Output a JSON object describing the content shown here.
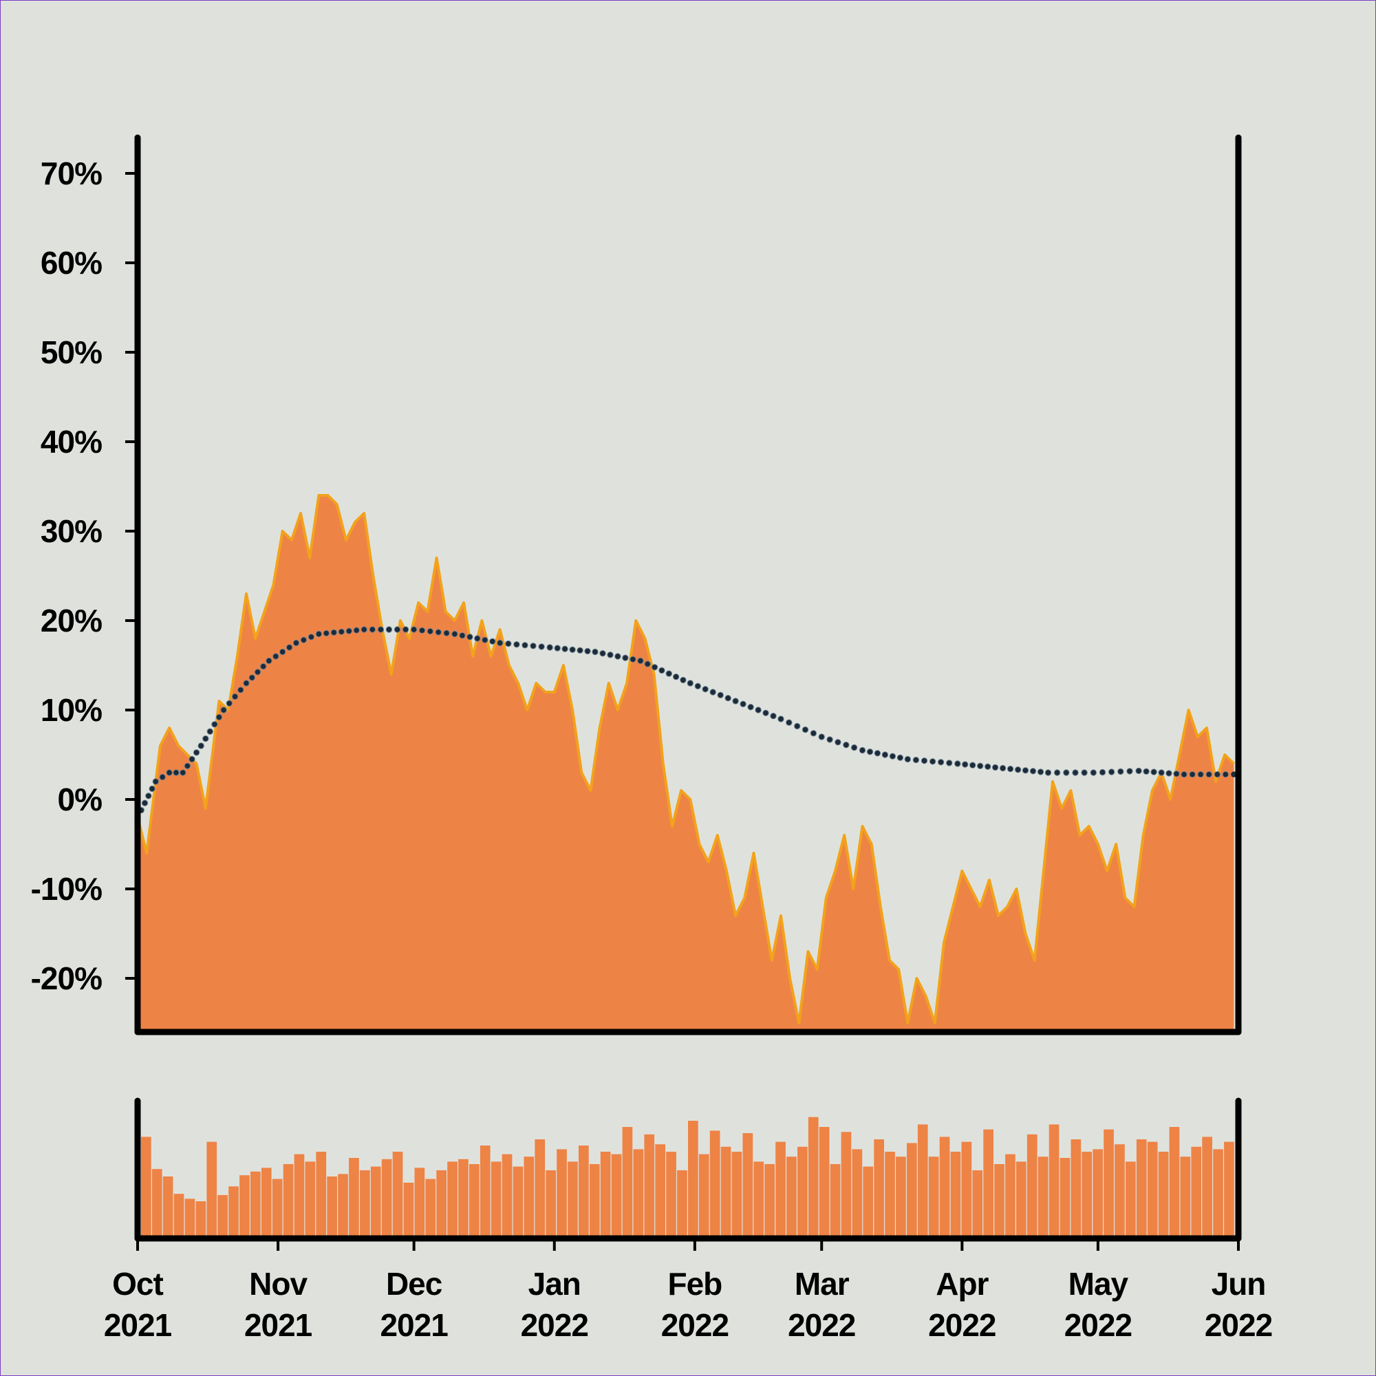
{
  "chart_data": {
    "type": "area",
    "title": "",
    "xlabel": "",
    "ylabel": "",
    "x_range": [
      "2021-10-01",
      "2022-05-31"
    ],
    "ylim": [
      -26,
      74
    ],
    "y_ticks": [
      -20,
      -10,
      0,
      10,
      20,
      30,
      40,
      50,
      60,
      70
    ],
    "y_tick_labels": [
      "-20%",
      "-10%",
      "0%",
      "10%",
      "20%",
      "30%",
      "40%",
      "50%",
      "60%",
      "70%"
    ],
    "x_ticks": [
      {
        "date": "2021-10-01",
        "month": "Oct",
        "year": "2021"
      },
      {
        "date": "2021-11-01",
        "month": "Nov",
        "year": "2021"
      },
      {
        "date": "2021-12-01",
        "month": "Dec",
        "year": "2021"
      },
      {
        "date": "2022-01-01",
        "month": "Jan",
        "year": "2022"
      },
      {
        "date": "2022-02-01",
        "month": "Feb",
        "year": "2022"
      },
      {
        "date": "2022-03-01",
        "month": "Mar",
        "year": "2022"
      },
      {
        "date": "2022-04-01",
        "month": "Apr",
        "year": "2022"
      },
      {
        "date": "2022-05-01",
        "month": "May",
        "year": "2022"
      },
      {
        "date": "2022-06-01",
        "month": "Jun",
        "year": "2022"
      }
    ],
    "grid": false,
    "legend": "none",
    "colors": {
      "area": "#ee8346",
      "area_edge": "#f2a21c",
      "trend": "#1c2b3a",
      "axis": "#000000",
      "background": "#dfe2dc"
    },
    "series": [
      {
        "type": "area",
        "points": [
          [
            "2021-10-01",
            -2
          ],
          [
            "2021-10-03",
            -6
          ],
          [
            "2021-10-06",
            6
          ],
          [
            "2021-10-08",
            8
          ],
          [
            "2021-10-10",
            6
          ],
          [
            "2021-10-12",
            5
          ],
          [
            "2021-10-14",
            4
          ],
          [
            "2021-10-16",
            -1
          ],
          [
            "2021-10-19",
            11
          ],
          [
            "2021-10-21",
            10
          ],
          [
            "2021-10-23",
            16
          ],
          [
            "2021-10-25",
            23
          ],
          [
            "2021-10-27",
            18
          ],
          [
            "2021-10-29",
            21
          ],
          [
            "2021-10-31",
            24
          ],
          [
            "2021-11-02",
            30
          ],
          [
            "2021-11-04",
            29
          ],
          [
            "2021-11-06",
            32
          ],
          [
            "2021-11-08",
            27
          ],
          [
            "2021-11-10",
            34
          ],
          [
            "2021-11-12",
            34
          ],
          [
            "2021-11-14",
            33
          ],
          [
            "2021-11-16",
            29
          ],
          [
            "2021-11-18",
            31
          ],
          [
            "2021-11-20",
            32
          ],
          [
            "2021-11-22",
            25
          ],
          [
            "2021-11-24",
            19
          ],
          [
            "2021-11-26",
            14
          ],
          [
            "2021-11-28",
            20
          ],
          [
            "2021-11-30",
            18
          ],
          [
            "2021-12-02",
            22
          ],
          [
            "2021-12-04",
            21
          ],
          [
            "2021-12-06",
            27
          ],
          [
            "2021-12-08",
            21
          ],
          [
            "2021-12-10",
            20
          ],
          [
            "2021-12-12",
            22
          ],
          [
            "2021-12-14",
            16
          ],
          [
            "2021-12-16",
            20
          ],
          [
            "2021-12-18",
            16
          ],
          [
            "2021-12-20",
            19
          ],
          [
            "2021-12-22",
            15
          ],
          [
            "2021-12-24",
            13
          ],
          [
            "2021-12-26",
            10
          ],
          [
            "2021-12-28",
            13
          ],
          [
            "2021-12-30",
            12
          ],
          [
            "2022-01-01",
            12
          ],
          [
            "2022-01-03",
            15
          ],
          [
            "2022-01-05",
            10
          ],
          [
            "2022-01-07",
            3
          ],
          [
            "2022-01-09",
            1
          ],
          [
            "2022-01-11",
            8
          ],
          [
            "2022-01-13",
            13
          ],
          [
            "2022-01-15",
            10
          ],
          [
            "2022-01-17",
            13
          ],
          [
            "2022-01-19",
            20
          ],
          [
            "2022-01-21",
            18
          ],
          [
            "2022-01-23",
            14
          ],
          [
            "2022-01-25",
            4
          ],
          [
            "2022-01-27",
            -3
          ],
          [
            "2022-01-29",
            1
          ],
          [
            "2022-01-31",
            0
          ],
          [
            "2022-02-02",
            -5
          ],
          [
            "2022-02-04",
            -7
          ],
          [
            "2022-02-06",
            -4
          ],
          [
            "2022-02-08",
            -8
          ],
          [
            "2022-02-10",
            -13
          ],
          [
            "2022-02-12",
            -11
          ],
          [
            "2022-02-14",
            -6
          ],
          [
            "2022-02-16",
            -12
          ],
          [
            "2022-02-18",
            -18
          ],
          [
            "2022-02-20",
            -13
          ],
          [
            "2022-02-22",
            -20
          ],
          [
            "2022-02-24",
            -25
          ],
          [
            "2022-02-26",
            -17
          ],
          [
            "2022-02-28",
            -19
          ],
          [
            "2022-03-02",
            -11
          ],
          [
            "2022-03-04",
            -8
          ],
          [
            "2022-03-06",
            -4
          ],
          [
            "2022-03-08",
            -10
          ],
          [
            "2022-03-10",
            -3
          ],
          [
            "2022-03-12",
            -5
          ],
          [
            "2022-03-14",
            -12
          ],
          [
            "2022-03-16",
            -18
          ],
          [
            "2022-03-18",
            -19
          ],
          [
            "2022-03-20",
            -25
          ],
          [
            "2022-03-22",
            -20
          ],
          [
            "2022-03-24",
            -22
          ],
          [
            "2022-03-26",
            -25
          ],
          [
            "2022-03-28",
            -16
          ],
          [
            "2022-03-30",
            -12
          ],
          [
            "2022-04-01",
            -8
          ],
          [
            "2022-04-03",
            -10
          ],
          [
            "2022-04-05",
            -12
          ],
          [
            "2022-04-07",
            -9
          ],
          [
            "2022-04-09",
            -13
          ],
          [
            "2022-04-11",
            -12
          ],
          [
            "2022-04-13",
            -10
          ],
          [
            "2022-04-15",
            -15
          ],
          [
            "2022-04-17",
            -18
          ],
          [
            "2022-04-19",
            -8
          ],
          [
            "2022-04-21",
            2
          ],
          [
            "2022-04-23",
            -1
          ],
          [
            "2022-04-25",
            1
          ],
          [
            "2022-04-27",
            -4
          ],
          [
            "2022-04-29",
            -3
          ],
          [
            "2022-05-01",
            -5
          ],
          [
            "2022-05-03",
            -8
          ],
          [
            "2022-05-05",
            -5
          ],
          [
            "2022-05-07",
            -11
          ],
          [
            "2022-05-09",
            -12
          ],
          [
            "2022-05-11",
            -4
          ],
          [
            "2022-05-13",
            1
          ],
          [
            "2022-05-15",
            3
          ],
          [
            "2022-05-17",
            0
          ],
          [
            "2022-05-19",
            5
          ],
          [
            "2022-05-21",
            10
          ],
          [
            "2022-05-23",
            7
          ],
          [
            "2022-05-25",
            8
          ],
          [
            "2022-05-27",
            2
          ],
          [
            "2022-05-29",
            5
          ],
          [
            "2022-05-31",
            4
          ]
        ]
      },
      {
        "type": "line",
        "style": "dotted",
        "points": [
          [
            "2021-10-01",
            -2
          ],
          [
            "2021-10-05",
            2
          ],
          [
            "2021-10-08",
            3
          ],
          [
            "2021-10-11",
            3
          ],
          [
            "2021-10-15",
            6
          ],
          [
            "2021-10-20",
            10
          ],
          [
            "2021-10-25",
            13
          ],
          [
            "2021-10-30",
            15.5
          ],
          [
            "2021-11-05",
            17.5
          ],
          [
            "2021-11-10",
            18.5
          ],
          [
            "2021-11-20",
            19
          ],
          [
            "2021-12-01",
            19
          ],
          [
            "2021-12-10",
            18.5
          ],
          [
            "2021-12-20",
            17.5
          ],
          [
            "2021-12-31",
            17
          ],
          [
            "2022-01-10",
            16.5
          ],
          [
            "2022-01-20",
            15.5
          ],
          [
            "2022-01-31",
            13
          ],
          [
            "2022-02-10",
            11
          ],
          [
            "2022-02-20",
            9
          ],
          [
            "2022-03-01",
            7
          ],
          [
            "2022-03-10",
            5.5
          ],
          [
            "2022-03-20",
            4.5
          ],
          [
            "2022-03-31",
            4
          ],
          [
            "2022-04-10",
            3.5
          ],
          [
            "2022-04-20",
            3
          ],
          [
            "2022-04-30",
            3
          ],
          [
            "2022-05-10",
            3.2
          ],
          [
            "2022-05-20",
            2.8
          ],
          [
            "2022-05-31",
            2.8
          ]
        ]
      }
    ],
    "volume_panel": {
      "type": "bar",
      "values": [
        0.82,
        0.56,
        0.5,
        0.36,
        0.32,
        0.3,
        0.78,
        0.35,
        0.42,
        0.51,
        0.54,
        0.57,
        0.48,
        0.6,
        0.68,
        0.62,
        0.7,
        0.5,
        0.52,
        0.65,
        0.55,
        0.58,
        0.64,
        0.7,
        0.45,
        0.57,
        0.48,
        0.55,
        0.62,
        0.64,
        0.6,
        0.75,
        0.62,
        0.68,
        0.58,
        0.66,
        0.8,
        0.55,
        0.72,
        0.62,
        0.75,
        0.6,
        0.7,
        0.68,
        0.9,
        0.72,
        0.84,
        0.76,
        0.7,
        0.55,
        0.95,
        0.68,
        0.87,
        0.74,
        0.7,
        0.85,
        0.62,
        0.6,
        0.78,
        0.66,
        0.74,
        0.98,
        0.9,
        0.6,
        0.86,
        0.72,
        0.58,
        0.8,
        0.7,
        0.66,
        0.77,
        0.92,
        0.66,
        0.82,
        0.7,
        0.78,
        0.55,
        0.88,
        0.6,
        0.68,
        0.62,
        0.84,
        0.66,
        0.92,
        0.65,
        0.8,
        0.7,
        0.72,
        0.88,
        0.76,
        0.62,
        0.8,
        0.78,
        0.7,
        0.9,
        0.66,
        0.74,
        0.82,
        0.72,
        0.78
      ]
    }
  }
}
